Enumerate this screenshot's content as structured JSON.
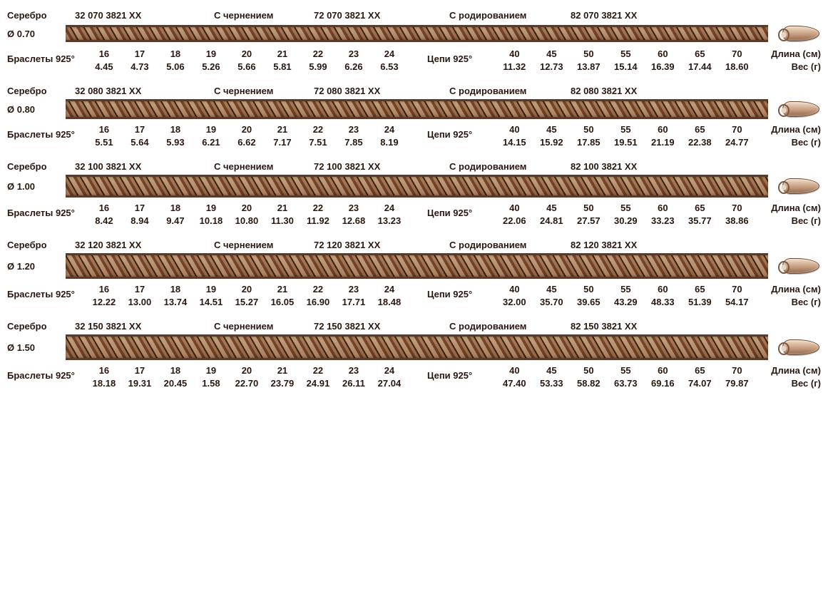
{
  "labels": {
    "material": "Серебро",
    "blackened": "С чернением",
    "rhodium": "С родированием",
    "bracelets": "Браслеты 925°",
    "chains": "Цепи 925°",
    "length": "Длина (см)",
    "weight": "Вес (г)",
    "diameter_sym": "Ø"
  },
  "bracelet_lengths": [
    "16",
    "17",
    "18",
    "19",
    "20",
    "21",
    "22",
    "23",
    "24"
  ],
  "chain_lengths": [
    "40",
    "45",
    "50",
    "55",
    "60",
    "65",
    "70"
  ],
  "rows": [
    {
      "diameter": "0.70",
      "code_silver": "32 070 3821 XX",
      "code_black": "72 070 3821 XX",
      "code_rhod": "82 070 3821 XX",
      "bracelet_w": [
        "4.45",
        "4.73",
        "5.06",
        "5.26",
        "5.66",
        "5.81",
        "5.99",
        "6.26",
        "6.53"
      ],
      "chain_w": [
        "11.32",
        "12.73",
        "13.87",
        "15.14",
        "16.39",
        "17.44",
        "18.60"
      ],
      "chain_h": 18
    },
    {
      "diameter": "0.80",
      "code_silver": "32 080 3821 XX",
      "code_black": "72 080 3821 XX",
      "code_rhod": "82 080 3821 XX",
      "bracelet_w": [
        "5.51",
        "5.64",
        "5.93",
        "6.21",
        "6.62",
        "7.17",
        "7.51",
        "7.85",
        "8.19"
      ],
      "chain_w": [
        "14.15",
        "15.92",
        "17.85",
        "19.51",
        "21.19",
        "22.38",
        "24.77"
      ],
      "chain_h": 22
    },
    {
      "diameter": "1.00",
      "code_silver": "32 100 3821 XX",
      "code_black": "72 100 3821 XX",
      "code_rhod": "82 100 3821 XX",
      "bracelet_w": [
        "8.42",
        "8.94",
        "9.47",
        "10.18",
        "10.80",
        "11.30",
        "11.92",
        "12.68",
        "13.23"
      ],
      "chain_w": [
        "22.06",
        "24.81",
        "27.57",
        "30.29",
        "33.23",
        "35.77",
        "38.86"
      ],
      "chain_h": 26
    },
    {
      "diameter": "1.20",
      "code_silver": "32 120 3821 XX",
      "code_black": "72 120 3821 XX",
      "code_rhod": "82 120 3821 XX",
      "bracelet_w": [
        "12.22",
        "13.00",
        "13.74",
        "14.51",
        "15.27",
        "16.05",
        "16.90",
        "17.71",
        "18.48"
      ],
      "chain_w": [
        "32.00",
        "35.70",
        "39.65",
        "43.29",
        "48.33",
        "51.39",
        "54.17"
      ],
      "chain_h": 30
    },
    {
      "diameter": "1.50",
      "code_silver": "32 150 3821 XX",
      "code_black": "72 150 3821 XX",
      "code_rhod": "82 150 3821 XX",
      "bracelet_w": [
        "18.18",
        "19.31",
        "20.45",
        "1.58",
        "22.70",
        "23.79",
        "24.91",
        "26.11",
        "27.04"
      ],
      "chain_w": [
        "47.40",
        "53.33",
        "58.82",
        "63.73",
        "69.16",
        "74.07",
        "79.87"
      ],
      "chain_h": 30
    }
  ]
}
